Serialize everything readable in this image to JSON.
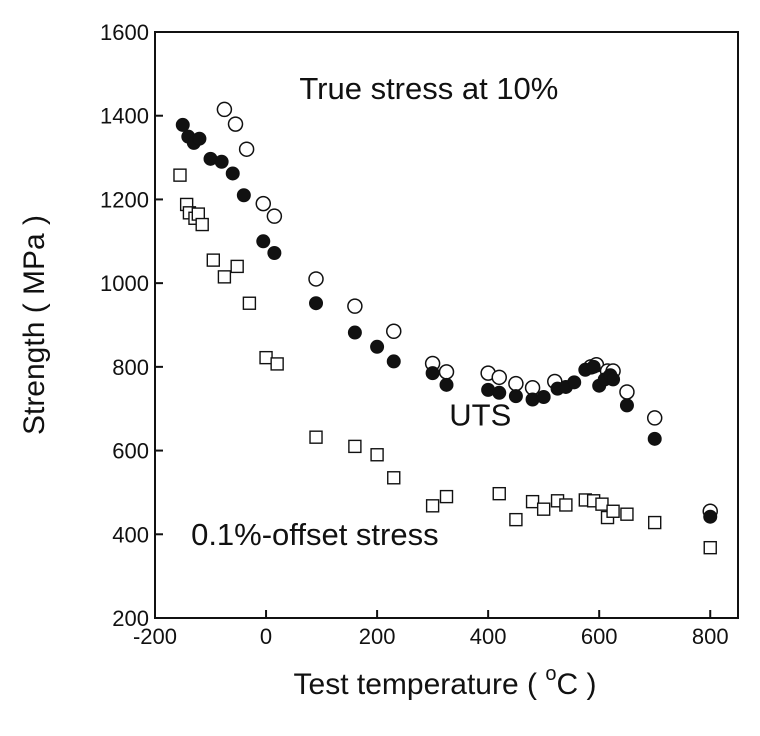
{
  "chart_data": {
    "type": "scatter",
    "title": "",
    "xlabel": "Test temperature ( °C )",
    "xlabel_parts": {
      "prefix": "Test temperature ( ",
      "superscript": "o",
      "suffix": "C )"
    },
    "ylabel": "Strength ( MPa )",
    "xlim": [
      -200,
      850
    ],
    "ylim": [
      200,
      1600
    ],
    "x_ticks": [
      -200,
      0,
      200,
      400,
      600,
      800
    ],
    "y_ticks": [
      200,
      400,
      600,
      800,
      1000,
      1200,
      1400,
      1600
    ],
    "grid": false,
    "legend": "none",
    "annotations": [
      {
        "text": "True stress at 10%",
        "x": 60,
        "y": 1440
      },
      {
        "text": "UTS",
        "x": 330,
        "y": 660
      },
      {
        "text": "0.1%-offset stress",
        "x": -135,
        "y": 375
      }
    ],
    "series": [
      {
        "marker": "open-circle",
        "points": [
          [
            -75,
            1415
          ],
          [
            -55,
            1380
          ],
          [
            -35,
            1320
          ],
          [
            -5,
            1190
          ],
          [
            15,
            1160
          ],
          [
            90,
            1010
          ],
          [
            160,
            945
          ],
          [
            230,
            885
          ],
          [
            300,
            808
          ],
          [
            325,
            788
          ],
          [
            400,
            785
          ],
          [
            420,
            775
          ],
          [
            450,
            760
          ],
          [
            480,
            750
          ],
          [
            520,
            765
          ],
          [
            585,
            800
          ],
          [
            595,
            805
          ],
          [
            615,
            790
          ],
          [
            625,
            790
          ],
          [
            650,
            740
          ],
          [
            700,
            678
          ],
          [
            800,
            455
          ]
        ]
      },
      {
        "marker": "filled-circle",
        "points": [
          [
            -150,
            1378
          ],
          [
            -140,
            1350
          ],
          [
            -130,
            1335
          ],
          [
            -120,
            1345
          ],
          [
            -100,
            1297
          ],
          [
            -80,
            1290
          ],
          [
            -60,
            1262
          ],
          [
            -40,
            1210
          ],
          [
            -5,
            1100
          ],
          [
            15,
            1072
          ],
          [
            90,
            952
          ],
          [
            160,
            882
          ],
          [
            200,
            848
          ],
          [
            230,
            813
          ],
          [
            300,
            785
          ],
          [
            325,
            757
          ],
          [
            400,
            745
          ],
          [
            420,
            738
          ],
          [
            450,
            730
          ],
          [
            480,
            722
          ],
          [
            500,
            728
          ],
          [
            525,
            748
          ],
          [
            540,
            752
          ],
          [
            555,
            763
          ],
          [
            575,
            793
          ],
          [
            590,
            800
          ],
          [
            600,
            755
          ],
          [
            610,
            770
          ],
          [
            620,
            780
          ],
          [
            625,
            770
          ],
          [
            650,
            708
          ],
          [
            700,
            628
          ],
          [
            800,
            442
          ]
        ]
      },
      {
        "marker": "open-square",
        "points": [
          [
            -155,
            1258
          ],
          [
            -143,
            1188
          ],
          [
            -138,
            1168
          ],
          [
            -128,
            1155
          ],
          [
            -122,
            1165
          ],
          [
            -115,
            1140
          ],
          [
            -95,
            1055
          ],
          [
            -75,
            1015
          ],
          [
            -52,
            1040
          ],
          [
            -30,
            952
          ],
          [
            0,
            822
          ],
          [
            20,
            807
          ],
          [
            90,
            632
          ],
          [
            160,
            610
          ],
          [
            200,
            590
          ],
          [
            230,
            535
          ],
          [
            300,
            468
          ],
          [
            325,
            490
          ],
          [
            420,
            497
          ],
          [
            450,
            435
          ],
          [
            480,
            478
          ],
          [
            500,
            460
          ],
          [
            525,
            480
          ],
          [
            540,
            470
          ],
          [
            575,
            482
          ],
          [
            590,
            480
          ],
          [
            605,
            472
          ],
          [
            615,
            440
          ],
          [
            625,
            455
          ],
          [
            650,
            448
          ],
          [
            700,
            428
          ],
          [
            800,
            368
          ]
        ]
      }
    ]
  }
}
